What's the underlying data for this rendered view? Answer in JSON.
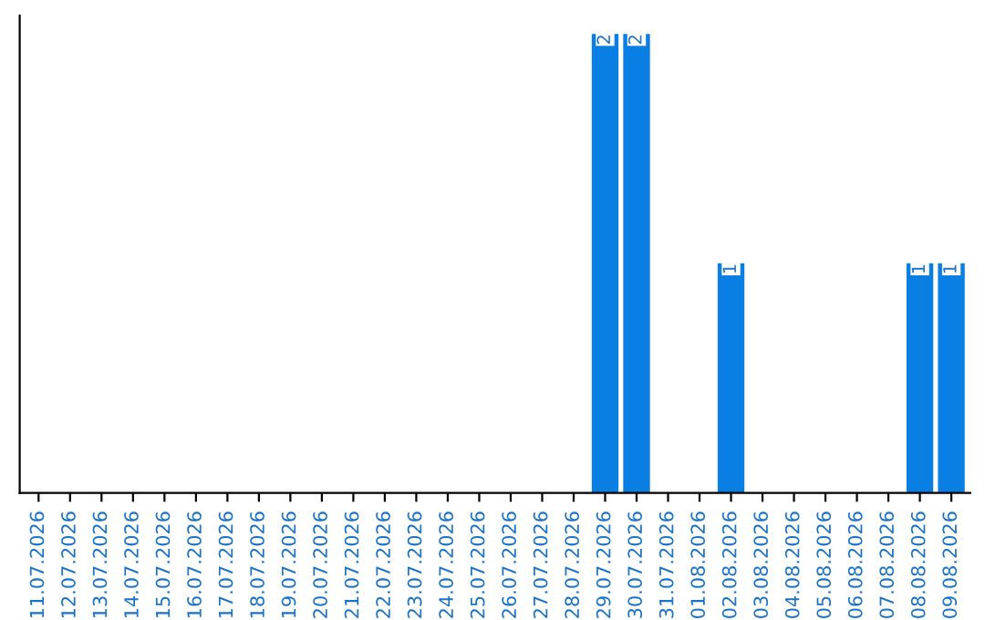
{
  "chart_data": {
    "type": "bar",
    "categories": [
      "11.07.2026",
      "12.07.2026",
      "13.07.2026",
      "14.07.2026",
      "15.07.2026",
      "16.07.2026",
      "17.07.2026",
      "18.07.2026",
      "19.07.2026",
      "20.07.2026",
      "21.07.2026",
      "22.07.2026",
      "23.07.2026",
      "24.07.2026",
      "25.07.2026",
      "26.07.2026",
      "27.07.2026",
      "28.07.2026",
      "29.07.2026",
      "30.07.2026",
      "31.07.2026",
      "01.08.2026",
      "02.08.2026",
      "03.08.2026",
      "04.08.2026",
      "05.08.2026",
      "06.08.2026",
      "07.08.2026",
      "08.08.2026",
      "09.08.2026"
    ],
    "values": [
      null,
      null,
      null,
      null,
      null,
      null,
      null,
      null,
      null,
      null,
      null,
      null,
      null,
      null,
      null,
      null,
      null,
      null,
      2,
      2,
      null,
      null,
      1,
      null,
      null,
      null,
      null,
      null,
      1,
      1
    ],
    "data_labels": true,
    "color": "#0a7fe3",
    "grid": false,
    "legend": false
  }
}
